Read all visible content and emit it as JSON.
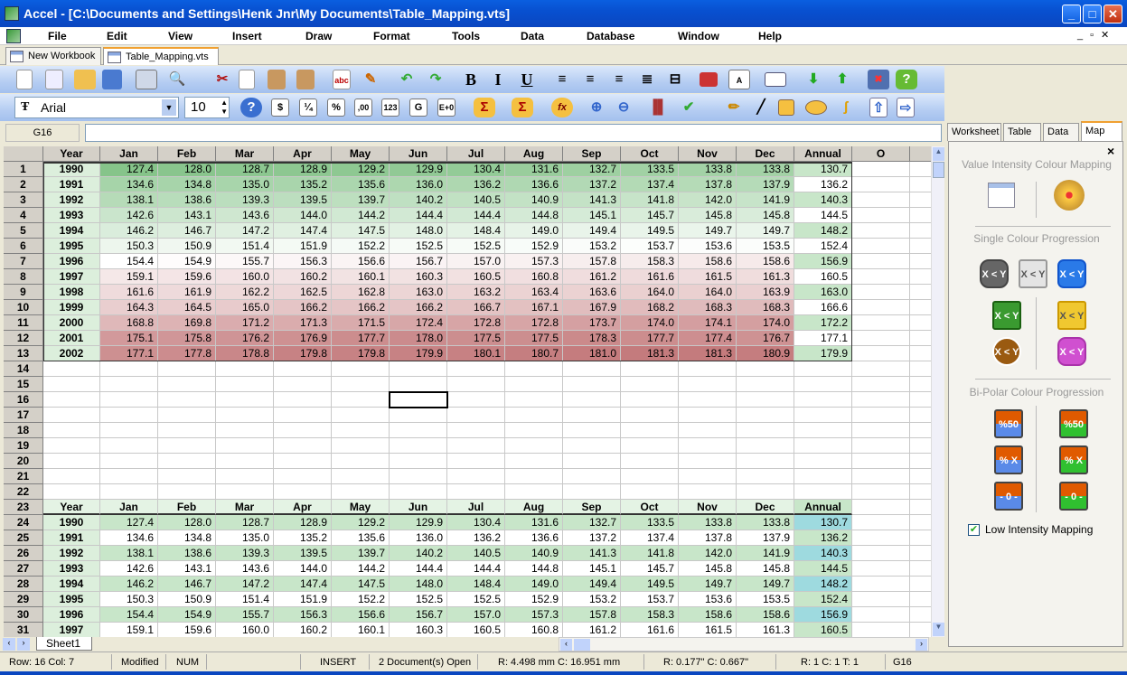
{
  "window": {
    "title": "Accel - [C:\\Documents and Settings\\Henk Jnr\\My Documents\\Table_Mapping.vts]",
    "minimize": "_",
    "maximize": "□",
    "close": "✕"
  },
  "menu": [
    "File",
    "Edit",
    "View",
    "Insert",
    "Draw",
    "Format",
    "Tools",
    "Data",
    "Database",
    "Window",
    "Help"
  ],
  "doc_tabs": [
    {
      "label": "New Workbook"
    },
    {
      "label": "Table_Mapping.vts",
      "active": true
    }
  ],
  "toolbar2": {
    "font": "Arial",
    "size": "10",
    "buttons": [
      "$",
      "¼",
      "%",
      ",00",
      "123",
      "G",
      "E+0"
    ]
  },
  "formula_bar": {
    "cell_ref": "G16",
    "content": ""
  },
  "grid": {
    "headers": [
      "Year",
      "Jan",
      "Feb",
      "Mar",
      "Apr",
      "May",
      "Jun",
      "Jul",
      "Aug",
      "Sep",
      "Oct",
      "Nov",
      "Dec",
      "Annual",
      "O"
    ],
    "rows": [
      [
        "1990",
        "127.4",
        "128.0",
        "128.7",
        "128.9",
        "129.2",
        "129.9",
        "130.4",
        "131.6",
        "132.7",
        "133.5",
        "133.8",
        "133.8",
        "130.7"
      ],
      [
        "1991",
        "134.6",
        "134.8",
        "135.0",
        "135.2",
        "135.6",
        "136.0",
        "136.2",
        "136.6",
        "137.2",
        "137.4",
        "137.8",
        "137.9",
        "136.2"
      ],
      [
        "1992",
        "138.1",
        "138.6",
        "139.3",
        "139.5",
        "139.7",
        "140.2",
        "140.5",
        "140.9",
        "141.3",
        "141.8",
        "142.0",
        "141.9",
        "140.3"
      ],
      [
        "1993",
        "142.6",
        "143.1",
        "143.6",
        "144.0",
        "144.2",
        "144.4",
        "144.4",
        "144.8",
        "145.1",
        "145.7",
        "145.8",
        "145.8",
        "144.5"
      ],
      [
        "1994",
        "146.2",
        "146.7",
        "147.2",
        "147.4",
        "147.5",
        "148.0",
        "148.4",
        "149.0",
        "149.4",
        "149.5",
        "149.7",
        "149.7",
        "148.2"
      ],
      [
        "1995",
        "150.3",
        "150.9",
        "151.4",
        "151.9",
        "152.2",
        "152.5",
        "152.5",
        "152.9",
        "153.2",
        "153.7",
        "153.6",
        "153.5",
        "152.4"
      ],
      [
        "1996",
        "154.4",
        "154.9",
        "155.7",
        "156.3",
        "156.6",
        "156.7",
        "157.0",
        "157.3",
        "157.8",
        "158.3",
        "158.6",
        "158.6",
        "156.9"
      ],
      [
        "1997",
        "159.1",
        "159.6",
        "160.0",
        "160.2",
        "160.1",
        "160.3",
        "160.5",
        "160.8",
        "161.2",
        "161.6",
        "161.5",
        "161.3",
        "160.5"
      ],
      [
        "1998",
        "161.6",
        "161.9",
        "162.2",
        "162.5",
        "162.8",
        "163.0",
        "163.2",
        "163.4",
        "163.6",
        "164.0",
        "164.0",
        "163.9",
        "163.0"
      ],
      [
        "1999",
        "164.3",
        "164.5",
        "165.0",
        "166.2",
        "166.2",
        "166.2",
        "166.7",
        "167.1",
        "167.9",
        "168.2",
        "168.3",
        "168.3",
        "166.6"
      ],
      [
        "2000",
        "168.8",
        "169.8",
        "171.2",
        "171.3",
        "171.5",
        "172.4",
        "172.8",
        "172.8",
        "173.7",
        "174.0",
        "174.1",
        "174.0",
        "172.2"
      ],
      [
        "2001",
        "175.1",
        "175.8",
        "176.2",
        "176.9",
        "177.7",
        "178.0",
        "177.5",
        "177.5",
        "178.3",
        "177.7",
        "177.4",
        "176.7",
        "177.1"
      ],
      [
        "2002",
        "177.1",
        "177.8",
        "178.8",
        "179.8",
        "179.8",
        "179.9",
        "180.1",
        "180.7",
        "181.0",
        "181.3",
        "181.3",
        "180.9",
        "179.9"
      ]
    ],
    "second_table_visible_rows": 8,
    "selected_cell": "G16",
    "colors": {
      "low": "#86c48a",
      "mid": "#ffffff",
      "high": "#c47b7d",
      "year_bg": "#dcefdc",
      "band_green": "#c8e6c9",
      "annual_cyan": "#9edadf"
    }
  },
  "sheet_tab": "Sheet1",
  "status": {
    "row": "Row:  16  Col:  7",
    "modified": "Modified",
    "num": "NUM",
    "insert": "INSERT",
    "docs": "2 Document(s) Open",
    "mm": "R: 4.498 mm  C: 16.951 mm",
    "inch": "R: 0.177\"  C: 0.667\"",
    "rct": "R: 1  C: 1  T: 1",
    "cell": "G16"
  },
  "panel": {
    "tabs": [
      "Worksheet",
      "Table",
      "Data",
      "Map"
    ],
    "active_tab": "Map",
    "close": "×",
    "section1": "Value Intensity Colour Mapping",
    "section2": "Single Colour Progression",
    "section3": "Bi-Polar Colour Progression",
    "xy": "X < Y",
    "p50": "%50",
    "px": "% X",
    "zero": "- 0 -",
    "checkbox_label": "Low Intensity Mapping",
    "checkbox_checked": true
  }
}
